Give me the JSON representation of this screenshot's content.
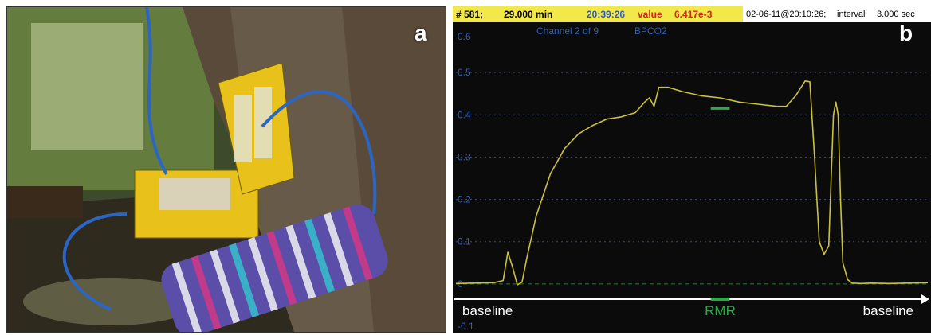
{
  "panel_a": {
    "letter": "a"
  },
  "panel_b": {
    "letter": "b"
  },
  "status_bar": {
    "record": "# 581;",
    "elapsed": "29.000 min",
    "clock": "20:39:26",
    "value_label": "value",
    "value": "6.417e-3",
    "timestamp": "02-06-11@20:10:26;",
    "interval_label": "interval",
    "interval_value": "3.000 sec"
  },
  "channel_info": {
    "channel": "Channel 2 of 9",
    "name": "BPCO2"
  },
  "colors": {
    "trace": "#c9c23a",
    "rmr_marker": "#2fa84a",
    "status_bg": "#f3e84a",
    "plot_bg": "#0b0b0b",
    "axis_text": "#2d5fb8"
  },
  "chart_data": {
    "type": "line",
    "title": "",
    "xlabel": "",
    "ylabel": "",
    "ylim": [
      -0.1,
      0.6
    ],
    "xlim": [
      0,
      100
    ],
    "grid": true,
    "yticks": [
      "0.6",
      "0.5",
      "0.4",
      "0.3",
      "0.2",
      "0.1",
      "0",
      "-0.1"
    ],
    "series": [
      {
        "x": [
          0,
          8,
          10,
          11,
          12,
          13,
          14,
          15,
          17,
          20,
          23,
          26,
          29,
          32,
          35,
          38,
          40,
          41,
          42,
          43,
          45,
          48,
          52,
          56,
          60,
          64,
          68,
          70,
          72,
          74,
          75,
          76,
          77,
          78,
          79,
          80,
          80.5,
          81,
          81.5,
          82,
          83,
          84,
          86,
          88,
          92,
          100
        ],
        "y": [
          0.001,
          0.003,
          0.008,
          0.075,
          0.04,
          -0.002,
          0.004,
          0.06,
          0.16,
          0.26,
          0.32,
          0.355,
          0.375,
          0.39,
          0.395,
          0.405,
          0.43,
          0.44,
          0.42,
          0.465,
          0.465,
          0.455,
          0.445,
          0.44,
          0.43,
          0.425,
          0.42,
          0.42,
          0.445,
          0.48,
          0.478,
          0.3,
          0.1,
          0.07,
          0.09,
          0.4,
          0.43,
          0.4,
          0.2,
          0.05,
          0.01,
          0.002,
          0.001,
          0.002,
          0.001,
          0.003
        ]
      }
    ],
    "annotations": {
      "rmr_segment": {
        "x_start": 54,
        "x_end": 58,
        "y": 0.415
      },
      "baseline_level": 0.0
    },
    "bottom_labels": {
      "left": "baseline",
      "center": "RMR",
      "right": "baseline"
    }
  }
}
